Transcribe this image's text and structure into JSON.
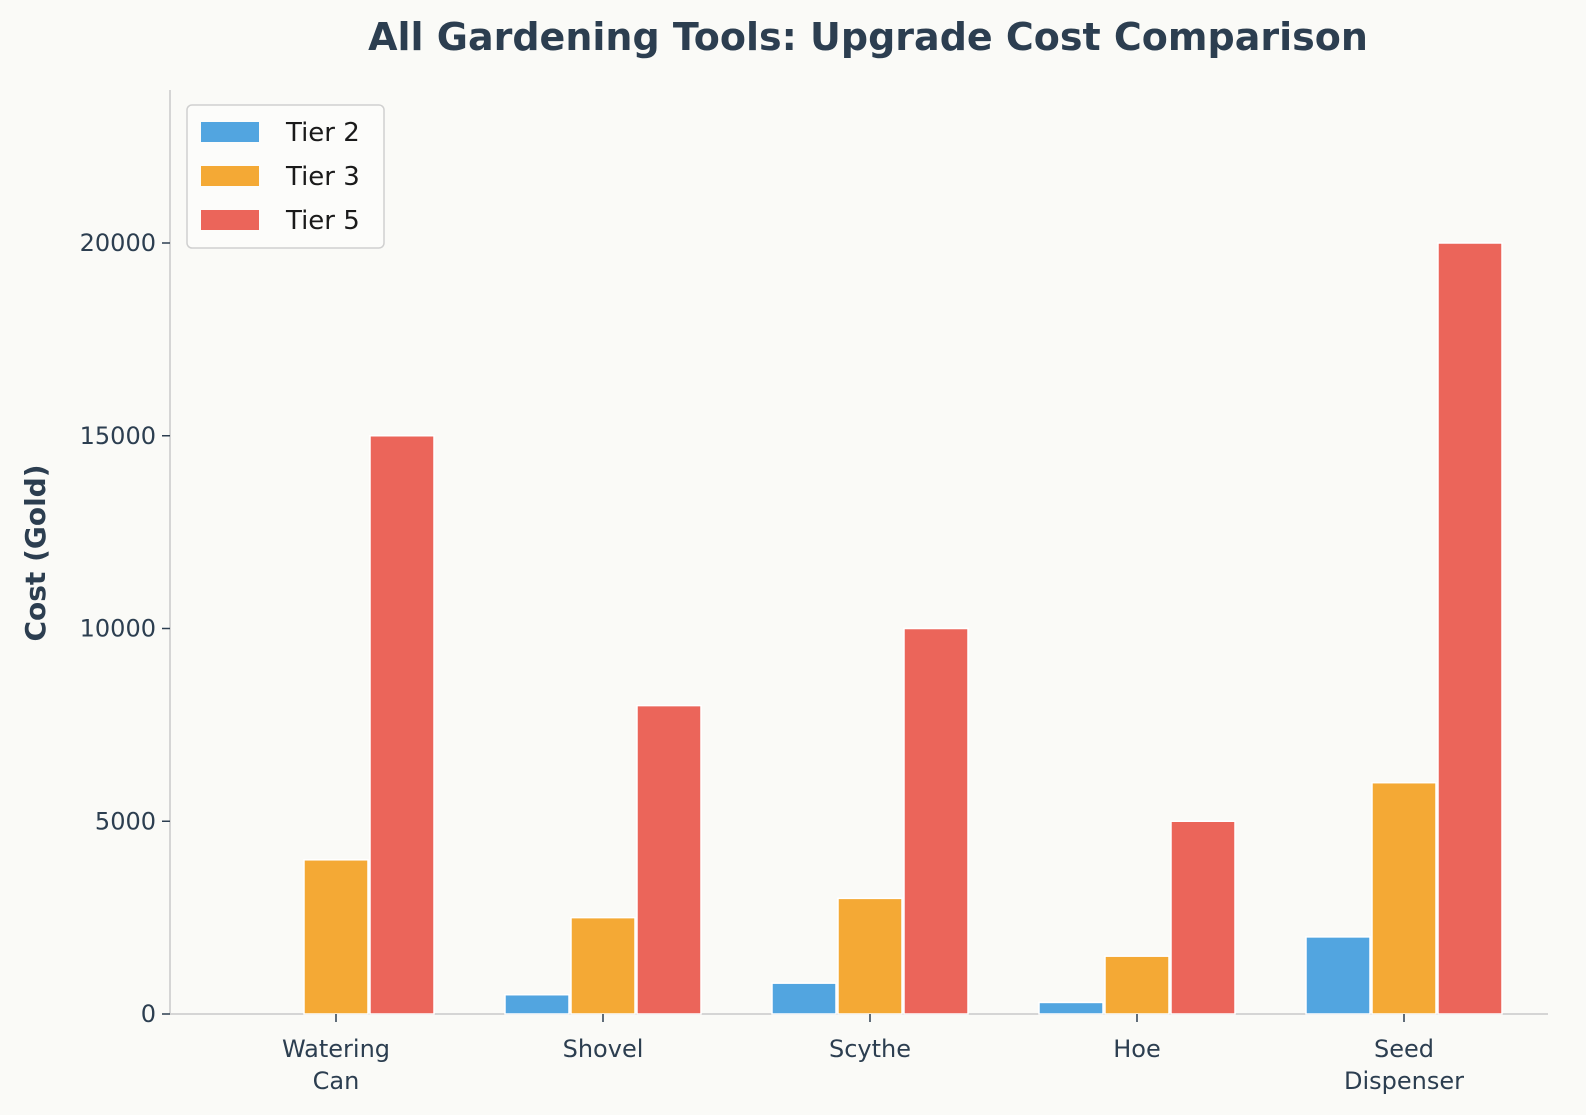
{
  "chart_data": {
    "type": "bar",
    "title": "All Gardening Tools: Upgrade Cost Comparison",
    "xlabel": "",
    "ylabel": "Cost (Gold)",
    "categories": [
      [
        "Watering",
        "Can"
      ],
      [
        "Shovel"
      ],
      [
        "Scythe"
      ],
      [
        "Hoe"
      ],
      [
        "Seed",
        "Dispenser"
      ]
    ],
    "series": [
      {
        "name": "Tier 2",
        "color": "#52a5e0",
        "values": [
          0,
          500,
          800,
          300,
          2000
        ]
      },
      {
        "name": "Tier 3",
        "color": "#f4a935",
        "values": [
          4000,
          2500,
          3000,
          1500,
          6000
        ]
      },
      {
        "name": "Tier 5",
        "color": "#eb655a",
        "values": [
          15000,
          8000,
          10000,
          5000,
          20000
        ]
      }
    ],
    "ylim": [
      0,
      24000
    ],
    "yticks": [
      0,
      5000,
      10000,
      15000,
      20000
    ],
    "grid": false,
    "legend_position": "top-left"
  }
}
